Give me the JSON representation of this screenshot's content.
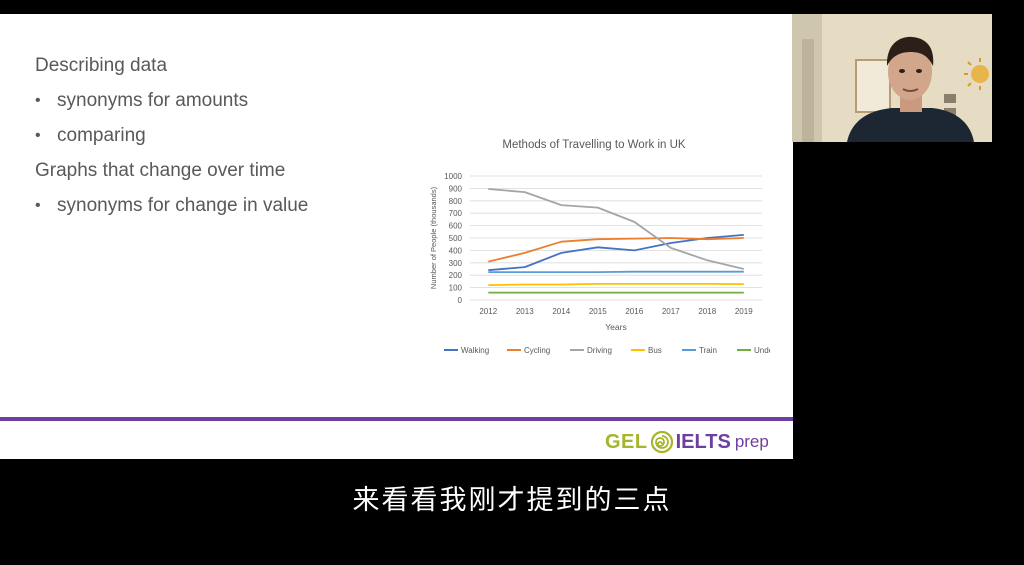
{
  "slide": {
    "heading1": "Describing data",
    "bullet1": "synonyms for amounts",
    "bullet2": "comparing",
    "heading2": "Graphs that change over time",
    "bullet3": "synonyms for change in value"
  },
  "logo": {
    "gel": "GEL",
    "ielts": "IELTS",
    "prep": "prep"
  },
  "subtitle": "来看看我刚才提到的三点",
  "chart_data": {
    "type": "line",
    "title": "Methods of Travelling to Work in UK",
    "xlabel": "Years",
    "ylabel": "Number of People (thousands)",
    "ylim": [
      0,
      1000
    ],
    "yticks": [
      0,
      100,
      200,
      300,
      400,
      500,
      600,
      700,
      800,
      900,
      1000
    ],
    "x": [
      "2012",
      "2013",
      "2014",
      "2015",
      "2016",
      "2017",
      "2018",
      "2019"
    ],
    "grid": true,
    "legend_position": "bottom",
    "series": [
      {
        "name": "Walking",
        "color": "#4472c4",
        "values": [
          240,
          265,
          380,
          425,
          400,
          460,
          500,
          525
        ]
      },
      {
        "name": "Cycling",
        "color": "#ed7d31",
        "values": [
          310,
          380,
          470,
          490,
          495,
          500,
          490,
          500
        ]
      },
      {
        "name": "Driving",
        "color": "#a5a5a5",
        "values": [
          895,
          870,
          765,
          745,
          630,
          420,
          320,
          250
        ]
      },
      {
        "name": "Bus",
        "color": "#ffc000",
        "values": [
          120,
          125,
          125,
          130,
          130,
          130,
          130,
          128
        ]
      },
      {
        "name": "Train",
        "color": "#5b9bd5",
        "values": [
          225,
          225,
          225,
          225,
          228,
          228,
          228,
          228
        ]
      },
      {
        "name": "Underground",
        "color": "#70ad47",
        "values": [
          60,
          60,
          60,
          60,
          60,
          60,
          60,
          60
        ]
      }
    ]
  }
}
